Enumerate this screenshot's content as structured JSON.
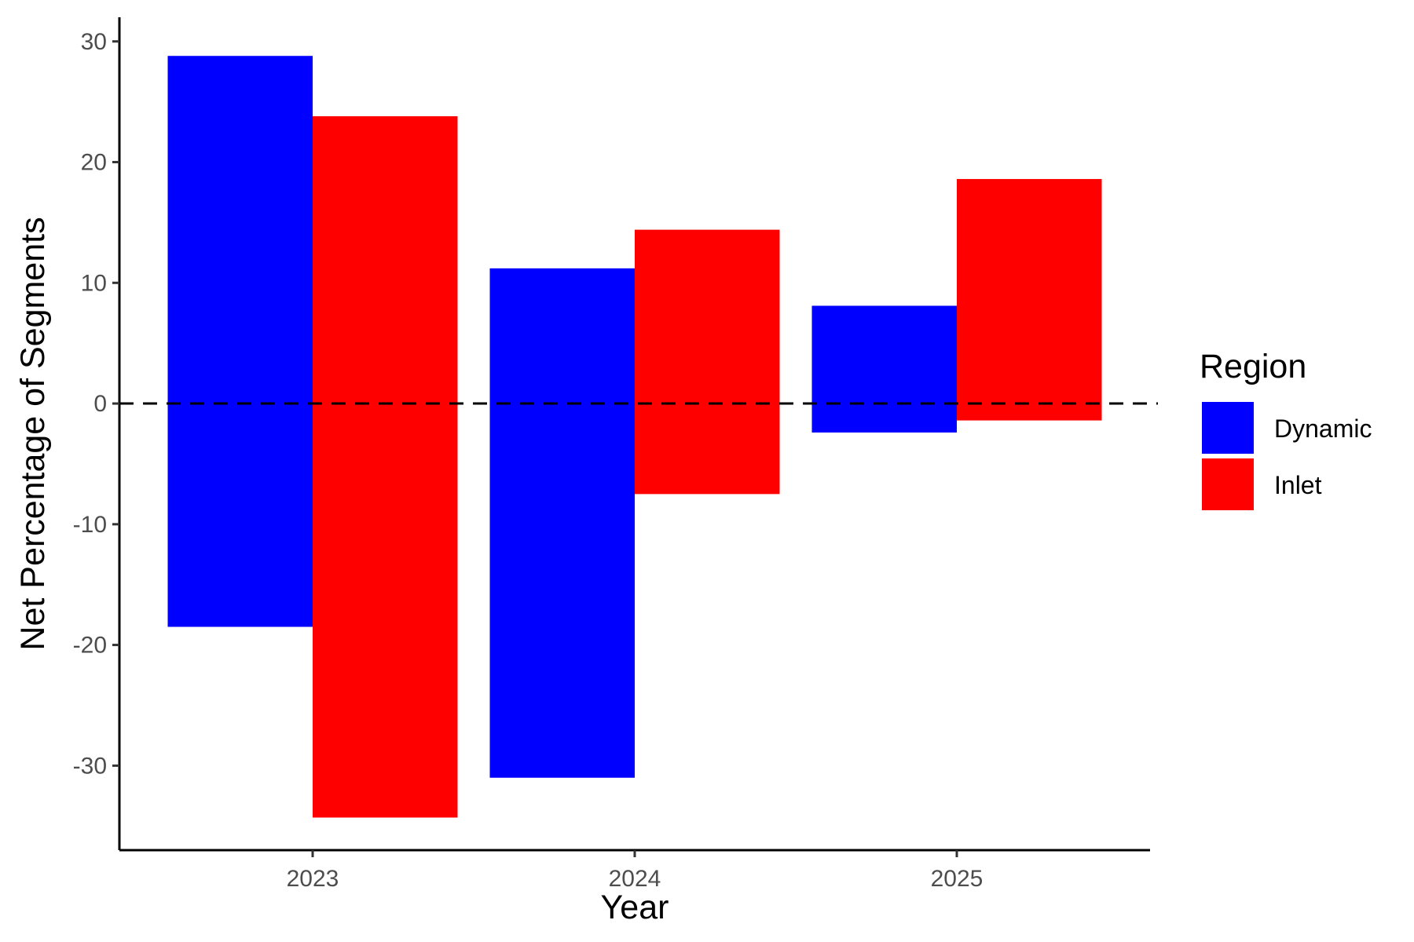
{
  "chart_data": {
    "type": "bar",
    "subtype": "floating-range",
    "categories": [
      "2023",
      "2024",
      "2025"
    ],
    "series": [
      {
        "name": "Dynamic",
        "color": "#0000ff",
        "ranges": [
          [
            -18.5,
            28.8
          ],
          [
            -31.0,
            11.2
          ],
          [
            -2.4,
            8.1
          ]
        ]
      },
      {
        "name": "Inlet",
        "color": "#ff0000",
        "ranges": [
          [
            -34.3,
            23.8
          ],
          [
            -7.5,
            14.4
          ],
          [
            -1.4,
            18.6
          ]
        ]
      }
    ],
    "xlabel": "Year",
    "ylabel": "Net Percentage of Segments",
    "ylim": [
      -37,
      32
    ],
    "yticks": [
      30,
      20,
      10,
      0,
      -10,
      -20,
      -30
    ],
    "ytick_labels": [
      "30",
      "20",
      "10",
      "0",
      "-10",
      "-20",
      "-30"
    ],
    "reference_line": {
      "value": 0,
      "style": "dashed",
      "color": "#000000"
    },
    "grid": false,
    "legend": {
      "title": "Region",
      "placement": "right"
    }
  }
}
